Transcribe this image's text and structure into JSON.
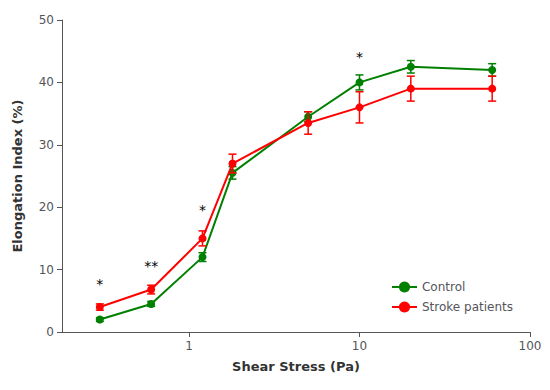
{
  "chart_data": {
    "type": "line",
    "xlabel": "Shear Stress (Pa)",
    "ylabel": "Elongation Index (%)",
    "x": [
      0.3,
      0.6,
      1.2,
      1.8,
      5.0,
      10.0,
      20.0,
      60.0
    ],
    "series": [
      {
        "name": "Control",
        "color": "#008000",
        "marker": "circle",
        "values": [
          2.0,
          4.5,
          12.0,
          25.5,
          34.5,
          40.0,
          42.5,
          42.0
        ],
        "errors": [
          0.3,
          0.4,
          0.7,
          1.0,
          0.8,
          1.2,
          1.0,
          1.0
        ]
      },
      {
        "name": "Stroke patients",
        "color": "#ff0000",
        "marker": "circle",
        "values": [
          4.0,
          6.8,
          15.0,
          27.0,
          33.5,
          36.0,
          39.0,
          39.0
        ],
        "errors": [
          0.5,
          0.7,
          1.2,
          1.5,
          1.8,
          2.5,
          2.0,
          2.0
        ]
      }
    ],
    "log": "x",
    "xlim": [
      0.18,
      100
    ],
    "xticks": [
      1,
      10,
      100
    ],
    "ylim": [
      0,
      50
    ],
    "yticks": [
      0,
      10,
      20,
      30,
      40,
      50
    ],
    "grid": false,
    "legend": "lower right",
    "annotations": [
      {
        "x": 0.3,
        "y": 6.5,
        "text": "*"
      },
      {
        "x": 0.6,
        "y": 9.5,
        "text": "**"
      },
      {
        "x": 1.2,
        "y": 18.5,
        "text": "*"
      },
      {
        "x": 10.0,
        "y": 43.0,
        "text": "*"
      }
    ]
  }
}
